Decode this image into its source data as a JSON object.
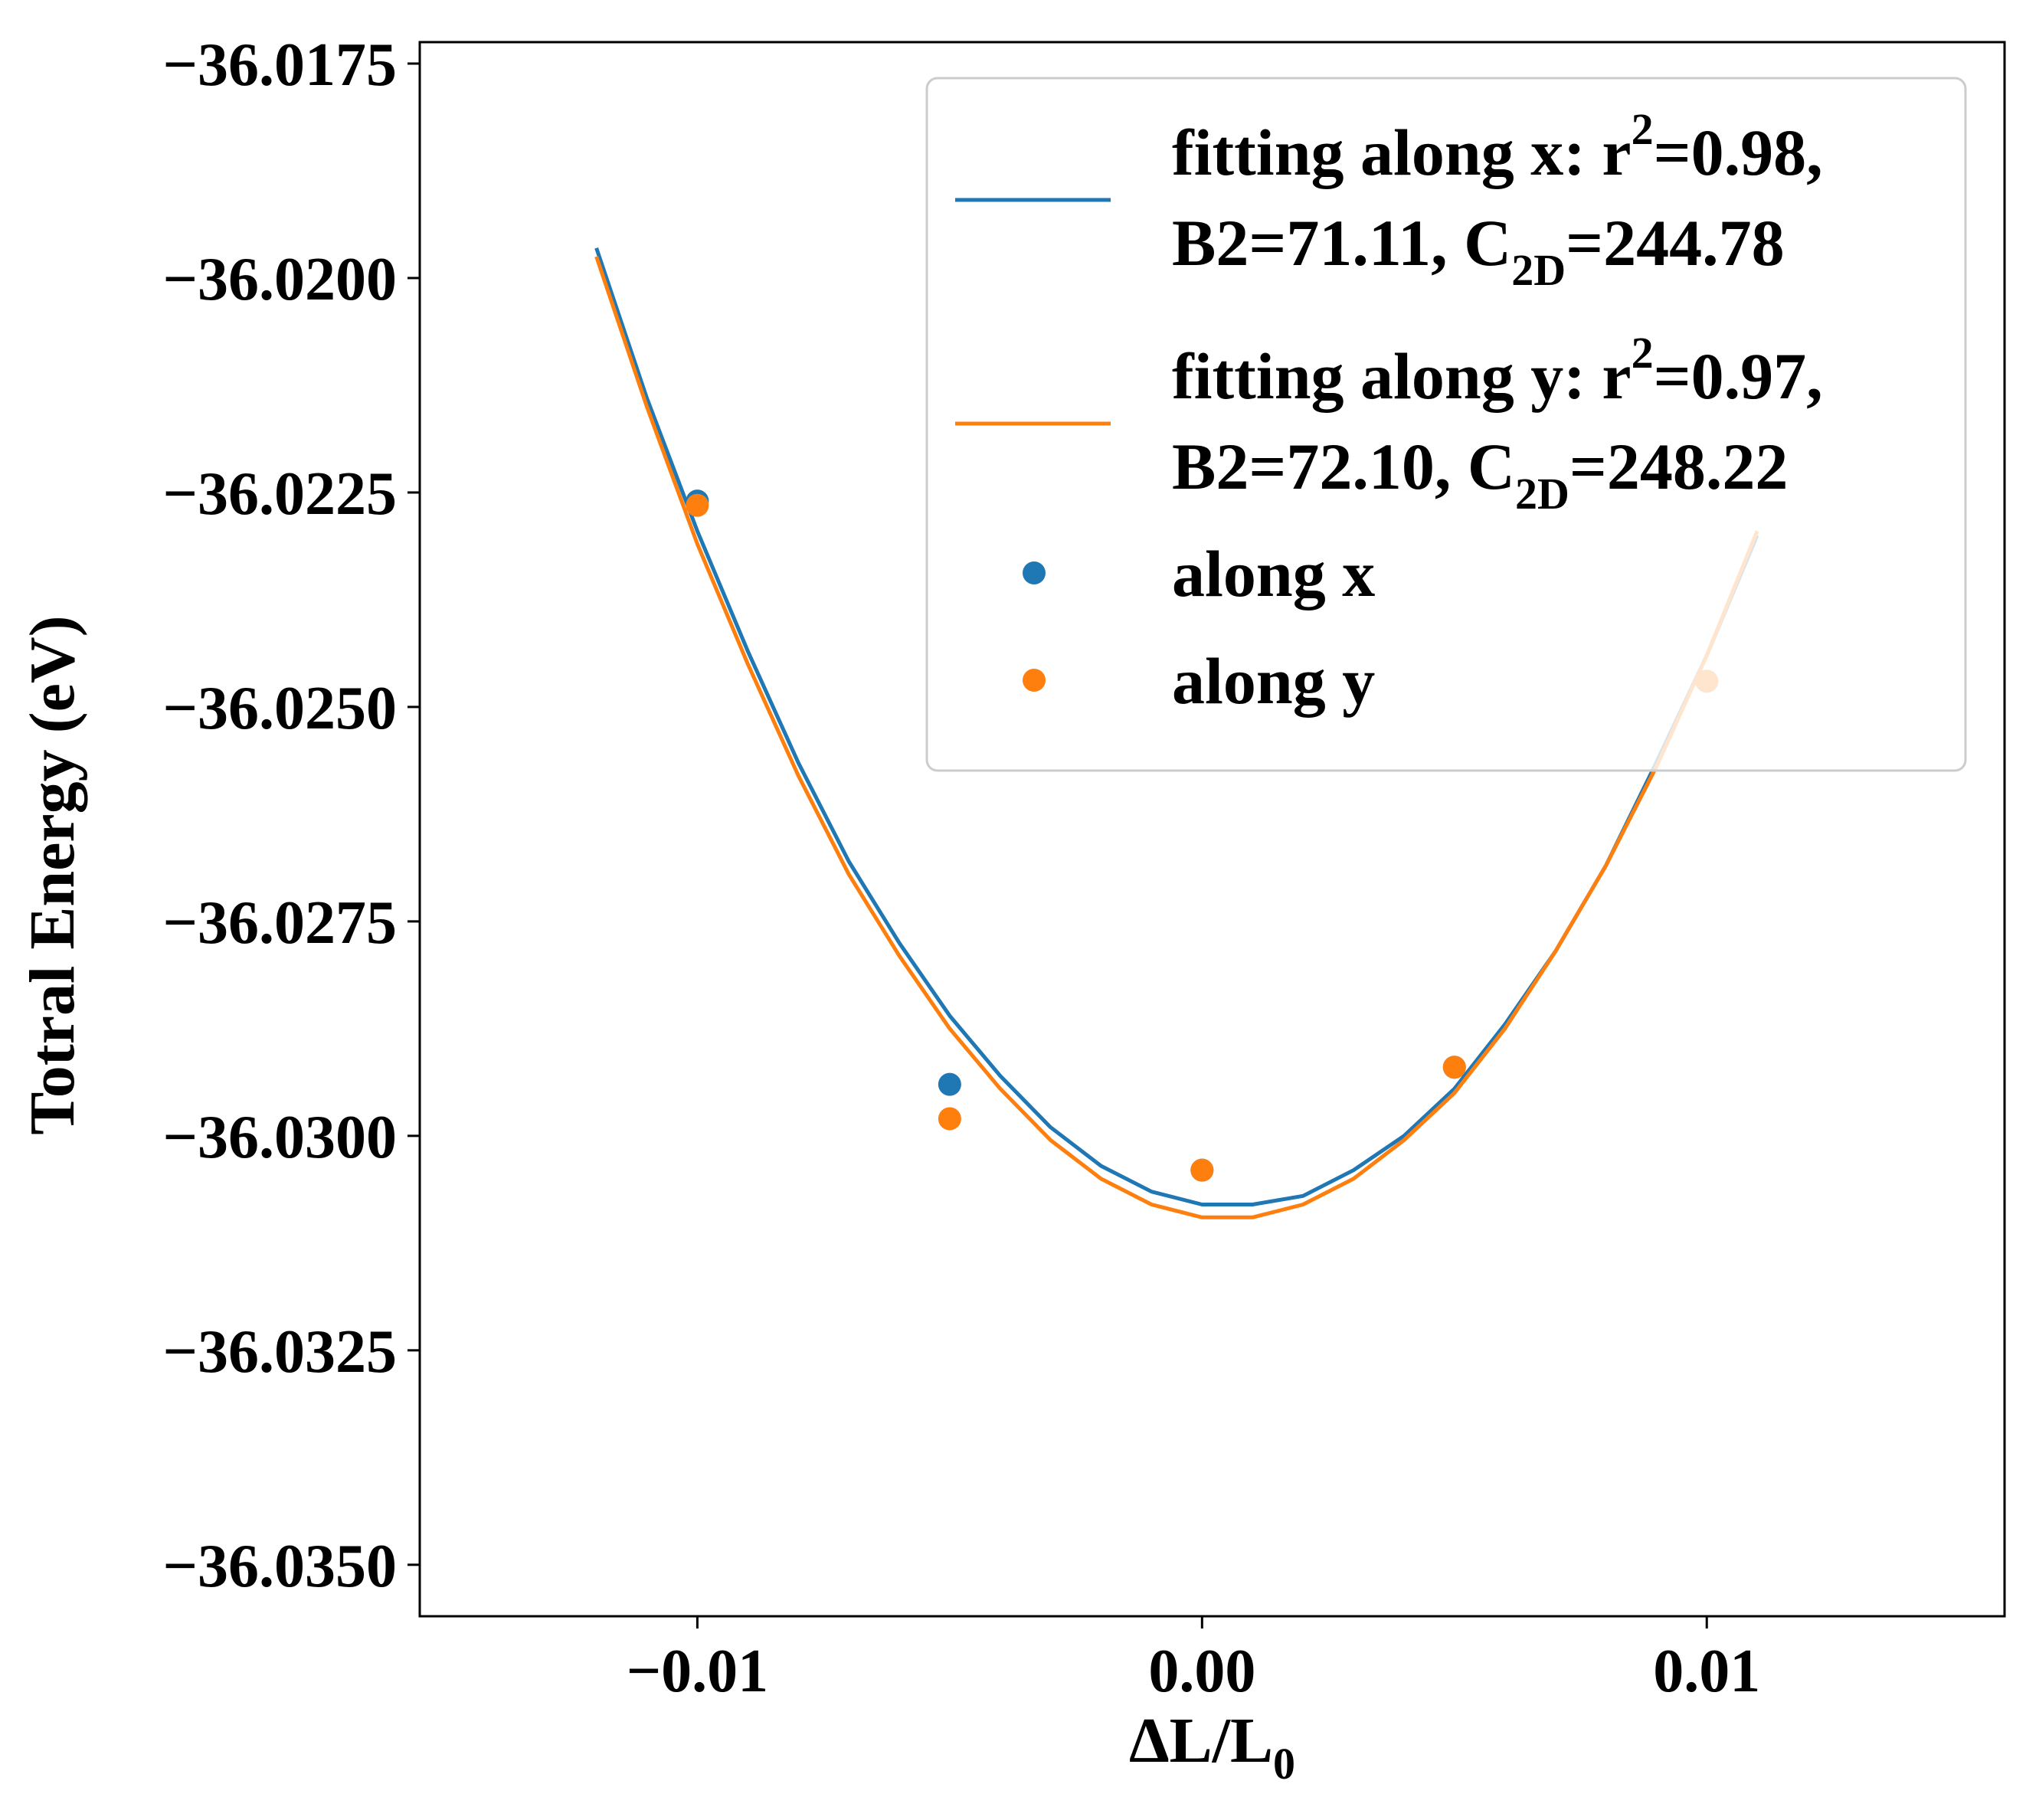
{
  "chart_data": {
    "type": "scatter",
    "title": "",
    "xlabel": "ΔL/L",
    "xlabel_subscript": "0",
    "ylabel": "Totral Energy (eV)",
    "xlim": [
      -0.0155,
      0.0159
    ],
    "ylim": [
      -36.0356,
      -36.01725
    ],
    "x_ticks": [
      -0.01,
      0.0,
      0.01
    ],
    "x_tick_labels": [
      "−0.01",
      "0.00",
      "0.01"
    ],
    "y_ticks": [
      -36.0175,
      -36.02,
      -36.0225,
      -36.025,
      -36.0275,
      -36.03,
      -36.0325,
      -36.035
    ],
    "y_tick_labels": [
      "−36.0175",
      "−36.0200",
      "−36.0225",
      "−36.0250",
      "−36.0275",
      "−36.0300",
      "−36.0325",
      "−36.0350"
    ],
    "grid": false,
    "legend_position": "top-right",
    "series": [
      {
        "name": "fitting along x",
        "kind": "line",
        "color": "#1f77b4",
        "legend_line1_prefix": "fitting along x: r",
        "legend_line1_sup": "2",
        "legend_line1_suffix": "=0.98,",
        "legend_line2_prefix": "B2=71.11, C",
        "legend_line2_sub": "2D",
        "legend_line2_suffix": "=244.78",
        "x": [
          -0.012,
          -0.011,
          -0.01,
          -0.009,
          -0.008,
          -0.007,
          -0.006,
          -0.005,
          -0.004,
          -0.003,
          -0.002,
          -0.001,
          0.0,
          0.001,
          0.002,
          0.003,
          0.004,
          0.005,
          0.006,
          0.007,
          0.008,
          0.009,
          0.01,
          0.011
        ],
        "y": [
          -36.01965,
          -36.0214,
          -36.02295,
          -36.02435,
          -36.02565,
          -36.0268,
          -36.02775,
          -36.0286,
          -36.0293,
          -36.0299,
          -36.03035,
          -36.03065,
          -36.0308,
          -36.0308,
          -36.0307,
          -36.0304,
          -36.03,
          -36.02945,
          -36.0287,
          -36.02785,
          -36.02685,
          -36.02565,
          -36.0244,
          -36.023
        ]
      },
      {
        "name": "fitting along y",
        "kind": "line",
        "color": "#ff7f0e",
        "legend_line1_prefix": "fitting along y: r",
        "legend_line1_sup": "2",
        "legend_line1_suffix": "=0.97,",
        "legend_line2_prefix": "B2=72.10, C",
        "legend_line2_sub": "2D",
        "legend_line2_suffix": "=248.22",
        "x": [
          -0.012,
          -0.011,
          -0.01,
          -0.009,
          -0.008,
          -0.007,
          -0.006,
          -0.005,
          -0.004,
          -0.003,
          -0.002,
          -0.001,
          0.0,
          0.001,
          0.002,
          0.003,
          0.004,
          0.005,
          0.006,
          0.007,
          0.008,
          0.009,
          0.01,
          0.011
        ],
        "y": [
          -36.01975,
          -36.0215,
          -36.0231,
          -36.0245,
          -36.0258,
          -36.02695,
          -36.0279,
          -36.02875,
          -36.02945,
          -36.03005,
          -36.0305,
          -36.0308,
          -36.03095,
          -36.03095,
          -36.0308,
          -36.0305,
          -36.03005,
          -36.0295,
          -36.02875,
          -36.02785,
          -36.02685,
          -36.0257,
          -36.0244,
          -36.02295
        ]
      },
      {
        "name": "along x",
        "kind": "scatter",
        "color": "#1f77b4",
        "legend_label": "along x",
        "x": [
          -0.01,
          -0.005,
          0.0,
          0.005,
          0.01
        ],
        "y": [
          -36.0226,
          -36.0294,
          -36.0304,
          -36.0292,
          -36.0247
        ]
      },
      {
        "name": "along y",
        "kind": "scatter",
        "color": "#ff7f0e",
        "legend_label": "along y",
        "x": [
          -0.01,
          -0.005,
          0.0,
          0.005,
          0.01
        ],
        "y": [
          -36.02265,
          -36.0298,
          -36.0304,
          -36.0292,
          -36.0247
        ]
      }
    ]
  }
}
